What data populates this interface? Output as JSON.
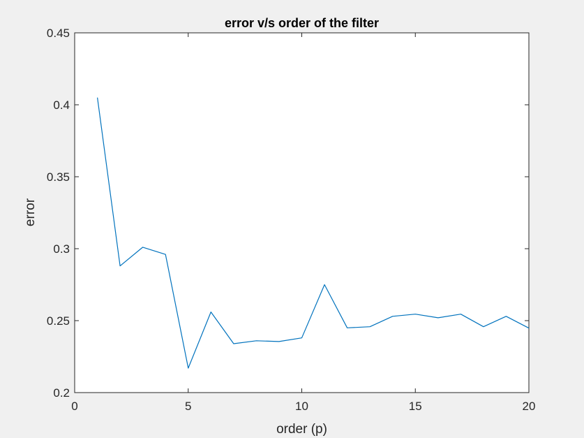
{
  "chart_data": {
    "type": "line",
    "title": "error v/s order of the filter",
    "xlabel": "order (p)",
    "ylabel": "error",
    "xlim": [
      0,
      20
    ],
    "ylim": [
      0.2,
      0.45
    ],
    "xticks": [
      0,
      5,
      10,
      15,
      20
    ],
    "yticks": [
      0.2,
      0.25,
      0.3,
      0.35,
      0.4,
      0.45
    ],
    "xtick_labels": [
      "0",
      "5",
      "10",
      "15",
      "20"
    ],
    "ytick_labels": [
      "0.2",
      "0.25",
      "0.3",
      "0.35",
      "0.4",
      "0.45"
    ],
    "grid": false,
    "series": [
      {
        "color": "#0072bd",
        "x": [
          1,
          2,
          3,
          4,
          5,
          6,
          7,
          8,
          9,
          10,
          11,
          12,
          13,
          14,
          15,
          16,
          17,
          18,
          19,
          20
        ],
        "y": [
          0.405,
          0.288,
          0.301,
          0.296,
          0.217,
          0.256,
          0.234,
          0.236,
          0.2355,
          0.238,
          0.275,
          0.245,
          0.2458,
          0.253,
          0.2545,
          0.252,
          0.2545,
          0.2458,
          0.253,
          0.2448
        ]
      }
    ]
  }
}
